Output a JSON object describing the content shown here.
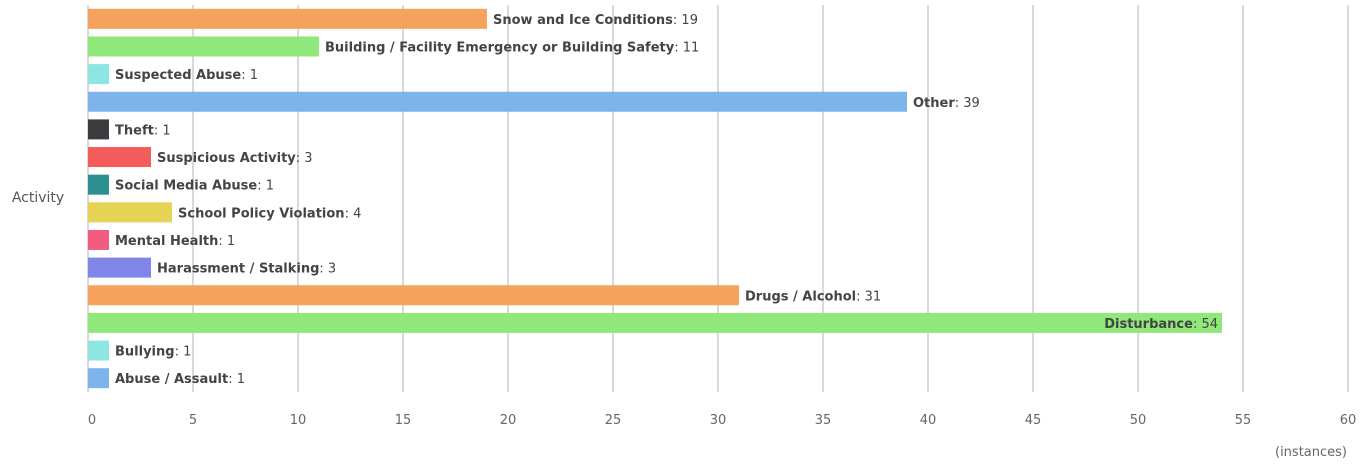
{
  "chart_data": {
    "type": "bar",
    "orientation": "horizontal",
    "categories": [
      "Snow and Ice Conditions",
      "Building / Facility Emergency or Building Safety",
      "Suspected Abuse",
      "Other",
      "Theft",
      "Suspicious Activity",
      "Social Media Abuse",
      "School Policy Violation",
      "Mental Health",
      "Harassment / Stalking",
      "Drugs / Alcohol",
      "Disturbance",
      "Bullying",
      "Abuse / Assault"
    ],
    "values": [
      19,
      11,
      1,
      39,
      1,
      3,
      1,
      4,
      1,
      3,
      31,
      54,
      1,
      1
    ],
    "colors": [
      "#f5a25d",
      "#90e87a",
      "#8ee6e3",
      "#7db4ec",
      "#3b3b3f",
      "#f45b5b",
      "#2b908f",
      "#e4d354",
      "#f15c80",
      "#8085e9",
      "#f5a25d",
      "#90e87a",
      "#8ee6e3",
      "#7db4ec"
    ],
    "ylabel": "Activity",
    "xlabel": "(instances)",
    "xlim": [
      0,
      60
    ],
    "xticks": [
      0,
      5,
      10,
      15,
      20,
      25,
      30,
      35,
      40,
      45,
      50,
      55,
      60
    ],
    "grid": "vertical",
    "data_labels": "category: value"
  }
}
